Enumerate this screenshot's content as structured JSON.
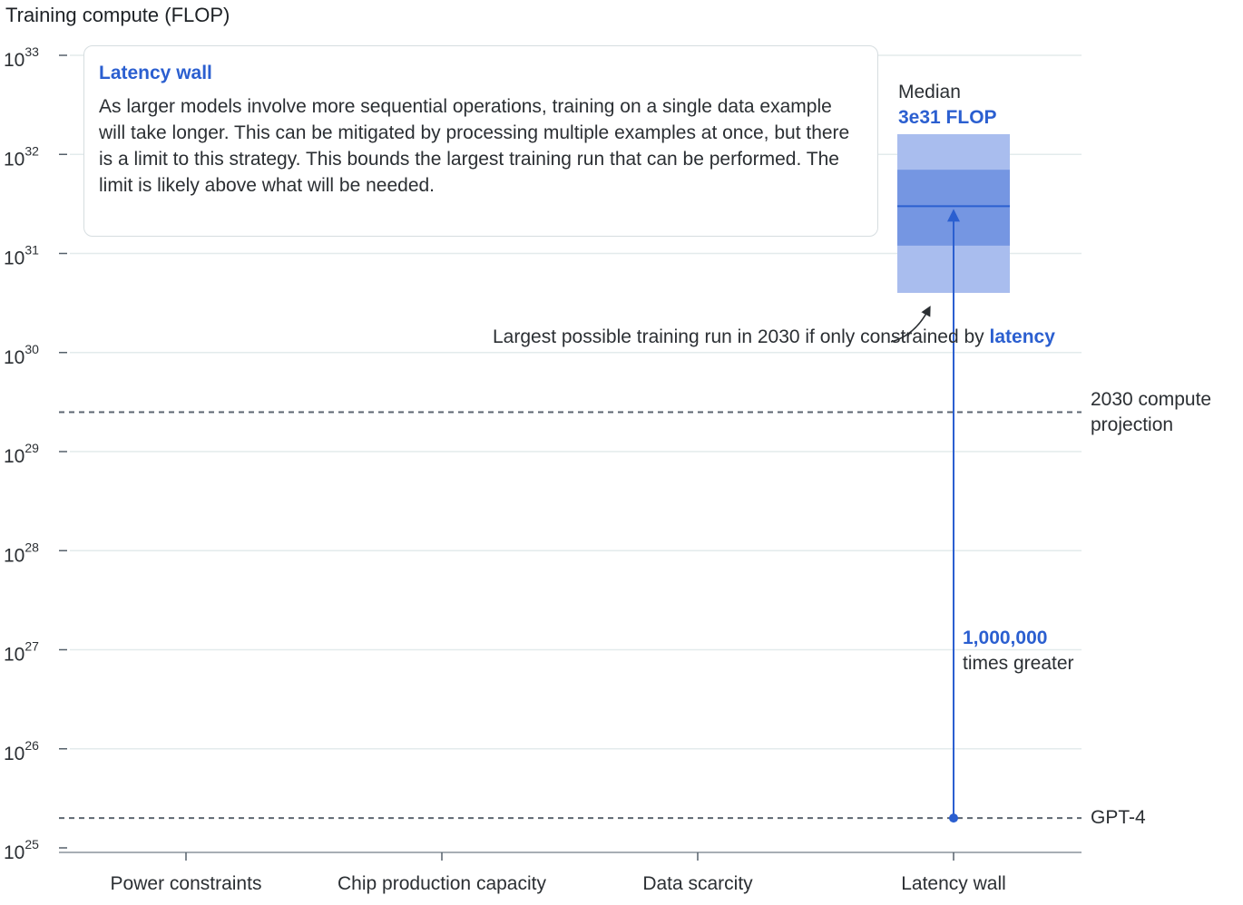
{
  "chart_data": {
    "type": "range",
    "ylabel": "Training compute (FLOP)",
    "yscale": "log",
    "ylim_exponent": [
      25,
      33
    ],
    "ytick_base": "10",
    "ytick_exponents": [
      "33",
      "32",
      "31",
      "30",
      "29",
      "28",
      "27",
      "26",
      "25"
    ],
    "categories": [
      "Power constraints",
      "Chip production capacity",
      "Data scarcity",
      "Latency wall"
    ],
    "highlighted_category": "Latency wall",
    "range": {
      "category": "Latency wall",
      "outer": [
        4e+30,
        1.6e+32
      ],
      "inner": [
        1.2e+31,
        7e+31
      ],
      "median": 3e+31
    },
    "reference_lines": [
      {
        "label": "2030 compute projection",
        "value": 2.5e+29
      },
      {
        "label": "GPT-4",
        "value": 2e+25
      }
    ],
    "arrow": {
      "category": "Latency wall",
      "from": 2e+25,
      "to": 3e+31
    }
  },
  "info": {
    "title": "Latency wall",
    "body": "As larger models involve more sequential operations, training on a single data example will take longer. This can be mitigated by processing multiple examples at once, but there is a limit to this strategy. This bounds the largest training run that can be performed. The limit is likely above what will be needed."
  },
  "annotation": {
    "text": "Largest possible training run in 2030 if only constrained by",
    "highlight": "latency"
  },
  "median_label": {
    "title": "Median",
    "value": "3e31 FLOP"
  },
  "multiplier": {
    "value": "1,000,000",
    "text": "times greater"
  },
  "ref_labels": {
    "projection": "2030 compute projection",
    "gpt4": "GPT-4"
  },
  "colors": {
    "accent": "#2b5fd0",
    "range_outer": "#a9bdee",
    "range_inner": "#7596e2",
    "grid": "#e3ebec",
    "dashed": "#5c6670",
    "axis": "#55606a"
  }
}
